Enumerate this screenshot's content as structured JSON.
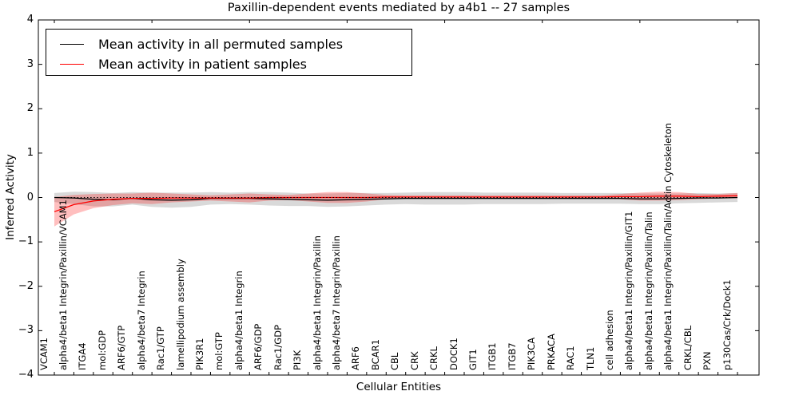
{
  "chart_data": {
    "type": "line",
    "title": "Paxillin-dependent events mediated by a4b1 -- 27 samples",
    "xlabel": "Cellular Entities",
    "ylabel": "Inferred Activity",
    "ylim": [
      -4,
      4
    ],
    "yticks": [
      -4,
      -3,
      -2,
      -1,
      0,
      1,
      2,
      3,
      4
    ],
    "grid": false,
    "legend_position": "upper left",
    "zero_line": {
      "style": "dotted",
      "color": "#000000",
      "y": 0
    },
    "categories": [
      "VCAM1",
      "alpha4/beta1 Integrin/Paxillin/VCAM1",
      "ITGA4",
      "mol:GDP",
      "ARF6/GTP",
      "alpha4/beta7 Integrin",
      "Rac1/GTP",
      "lamellipodium assembly",
      "PIK3R1",
      "mol:GTP",
      "alpha4/beta1 Integrin",
      "ARF6/GDP",
      "Rac1/GDP",
      "PI3K",
      "alpha4/beta1 Integrin/Paxillin",
      "alpha4/beta7 Integrin/Paxillin",
      "ARF6",
      "BCAR1",
      "CBL",
      "CRK",
      "CRKL",
      "DOCK1",
      "GIT1",
      "ITGB1",
      "ITGB7",
      "PIK3CA",
      "PRKACA",
      "RAC1",
      "TLN1",
      "cell adhesion",
      "alpha4/beta1 Integrin/Paxillin/GIT1",
      "alpha4/beta1 Integrin/Paxillin/Talin",
      "alpha4/beta1 Integrin/Paxillin/Talin/Actin Cytoskeleton",
      "CRKL/CBL",
      "PXN",
      "p130Cas/Crk/Dock1"
    ],
    "series": [
      {
        "name": "Mean activity in all permuted samples",
        "color": "#000000",
        "band_color": "#aaaaaa",
        "band_opacity": 0.45,
        "values": [
          0.0,
          -0.01,
          -0.04,
          -0.05,
          -0.02,
          -0.05,
          -0.06,
          -0.05,
          -0.02,
          -0.02,
          -0.02,
          -0.03,
          -0.04,
          -0.05,
          -0.06,
          -0.05,
          -0.04,
          -0.03,
          -0.02,
          -0.02,
          -0.02,
          -0.02,
          -0.02,
          -0.02,
          -0.02,
          -0.02,
          -0.02,
          -0.02,
          -0.02,
          -0.02,
          -0.03,
          -0.03,
          -0.02,
          -0.01,
          -0.01,
          0.0
        ],
        "band_halfwidth": [
          0.1,
          0.14,
          0.16,
          0.15,
          0.14,
          0.16,
          0.17,
          0.16,
          0.14,
          0.13,
          0.14,
          0.15,
          0.15,
          0.14,
          0.15,
          0.15,
          0.14,
          0.13,
          0.13,
          0.14,
          0.14,
          0.14,
          0.13,
          0.13,
          0.13,
          0.13,
          0.12,
          0.12,
          0.12,
          0.12,
          0.12,
          0.12,
          0.11,
          0.11,
          0.1,
          0.1
        ]
      },
      {
        "name": "Mean activity in patient samples",
        "color": "#ff0000",
        "band_color": "#ff0000",
        "band_opacity": 0.25,
        "values": [
          -0.32,
          -0.16,
          -0.08,
          -0.04,
          -0.02,
          -0.02,
          -0.01,
          -0.01,
          -0.01,
          -0.01,
          -0.01,
          0.0,
          0.0,
          0.0,
          0.0,
          0.0,
          0.0,
          0.01,
          0.01,
          0.01,
          0.01,
          0.01,
          0.01,
          0.01,
          0.01,
          0.01,
          0.01,
          0.01,
          0.01,
          0.02,
          0.02,
          0.03,
          0.03,
          0.02,
          0.03,
          0.04
        ],
        "band_halfwidth": [
          0.33,
          0.22,
          0.16,
          0.13,
          0.11,
          0.13,
          0.1,
          0.08,
          0.06,
          0.08,
          0.1,
          0.07,
          0.06,
          0.09,
          0.12,
          0.12,
          0.09,
          0.05,
          0.04,
          0.04,
          0.04,
          0.04,
          0.04,
          0.04,
          0.04,
          0.04,
          0.04,
          0.04,
          0.04,
          0.06,
          0.09,
          0.1,
          0.09,
          0.06,
          0.05,
          0.06
        ]
      }
    ]
  }
}
